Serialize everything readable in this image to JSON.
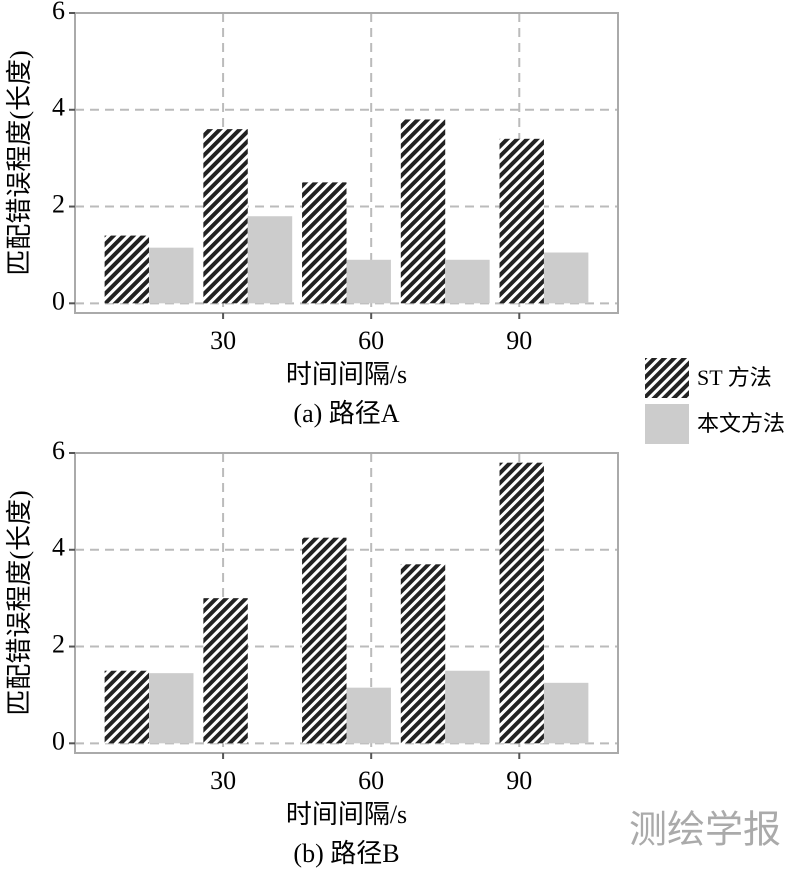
{
  "chart_data": [
    {
      "type": "bar",
      "caption": "(a) 路径A",
      "xlabel": "时间间隔/s",
      "ylabel": "匹配错误程度(长度)",
      "x": [
        15,
        35,
        55,
        75,
        95
      ],
      "series": [
        {
          "name": "ST 方法",
          "color": "#222222",
          "hatch": true,
          "values": [
            1.4,
            3.6,
            2.5,
            3.8,
            3.4
          ]
        },
        {
          "name": "本文方法",
          "color": "#cccccc",
          "hatch": false,
          "values": [
            1.15,
            1.8,
            0.9,
            0.9,
            1.05
          ]
        }
      ],
      "xlim": [
        0,
        110
      ],
      "xticks": [
        30,
        60,
        90
      ],
      "ylim": [
        -0.2,
        6
      ],
      "yticks": [
        0,
        2,
        4,
        6
      ],
      "grid": true
    },
    {
      "type": "bar",
      "caption": "(b) 路径B",
      "xlabel": "时间间隔/s",
      "ylabel": "匹配错误程度(长度)",
      "x": [
        15,
        35,
        55,
        75,
        95
      ],
      "series": [
        {
          "name": "ST 方法",
          "color": "#222222",
          "hatch": true,
          "values": [
            1.5,
            3.0,
            4.25,
            3.7,
            5.8
          ]
        },
        {
          "name": "本文方法",
          "color": "#cccccc",
          "hatch": false,
          "values": [
            1.45,
            0,
            1.15,
            1.5,
            1.25
          ]
        }
      ],
      "xlim": [
        0,
        110
      ],
      "xticks": [
        30,
        60,
        90
      ],
      "ylim": [
        -0.2,
        6
      ],
      "yticks": [
        0,
        2,
        4,
        6
      ],
      "grid": true
    }
  ],
  "legend_position": "right",
  "watermark": "测绘学报"
}
